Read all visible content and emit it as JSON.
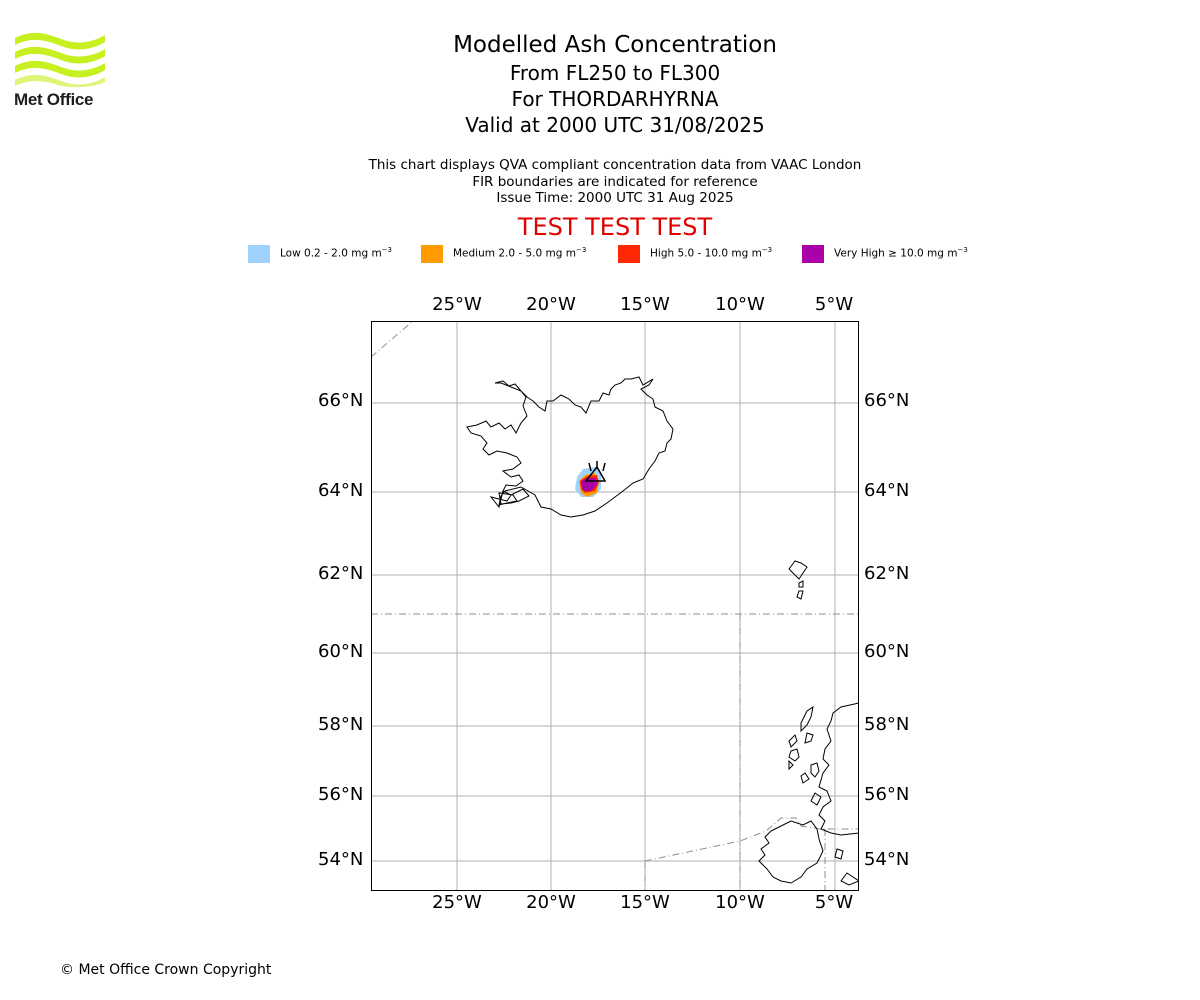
{
  "logo": {
    "text": "Met Office",
    "color": "#c6f01f"
  },
  "header": {
    "title": "Modelled Ash Concentration",
    "level_range": "From FL250 to FL300",
    "volcano": "For THORDARHYRNA",
    "valid_time": "Valid at 2000 UTC 31/08/2025"
  },
  "subtitle": {
    "line1": "This chart displays QVA compliant concentration data from VAAC London",
    "line2": "FIR boundaries are indicated for reference",
    "line3": "Issue Time: 2000 UTC 31 Aug 2025"
  },
  "test_banner": "TEST TEST TEST",
  "legend": [
    {
      "label": "Low 0.2 - 2.0 mg m",
      "color": "#a0d2ff"
    },
    {
      "label": "Medium 2.0 - 5.0 mg m",
      "color": "#ff9b00"
    },
    {
      "label": "High 5.0 - 10.0 mg m",
      "color": "#ff2800"
    },
    {
      "label": "Very High ≥ 10.0 mg m",
      "color": "#aa00aa"
    }
  ],
  "legend_unit_exponent": "−3",
  "map": {
    "lon_ticks": [
      "25°W",
      "20°W",
      "15°W",
      "10°W",
      "5°W"
    ],
    "lat_ticks": [
      "66°N",
      "64°N",
      "62°N",
      "60°N",
      "58°N",
      "56°N",
      "54°N"
    ],
    "volcano_location": {
      "lon": -17.6,
      "lat": 64.4
    }
  },
  "copyright": "© Met Office Crown Copyright"
}
